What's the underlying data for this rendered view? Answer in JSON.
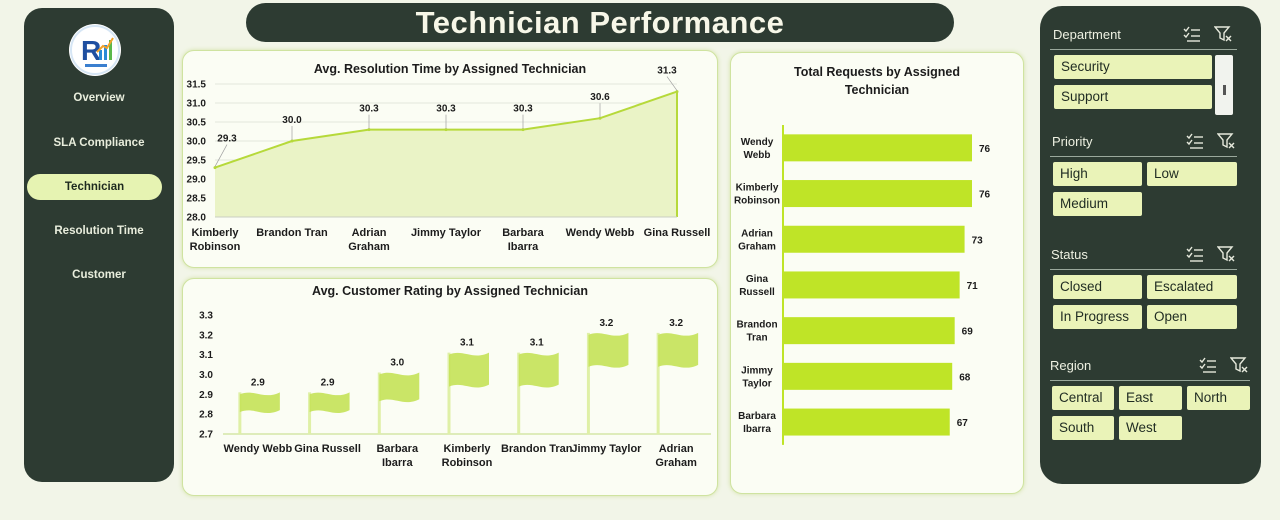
{
  "title": "Technician Performance",
  "nav": {
    "items": [
      {
        "label": "Overview"
      },
      {
        "label": "SLA Compliance"
      },
      {
        "label": "Technician"
      },
      {
        "label": "Resolution Time"
      },
      {
        "label": "Customer"
      }
    ],
    "active": "Technician"
  },
  "charts": {
    "resolution": {
      "chart_data": {
        "type": "area",
        "title": "Avg. Resolution Time by Assigned Technician",
        "categories": [
          "Kimberly Robinson",
          "Brandon Tran",
          "Adrian Graham",
          "Jimmy Taylor",
          "Barbara Ibarra",
          "Wendy Webb",
          "Gina Russell"
        ],
        "values": [
          29.3,
          30.0,
          30.3,
          30.3,
          30.3,
          30.6,
          31.3
        ],
        "ylim": [
          28.0,
          31.5
        ],
        "yticks": [
          "31.5",
          "31.0",
          "30.5",
          "30.0",
          "29.5",
          "29.0",
          "28.5",
          "28.0"
        ],
        "data_labels": [
          "29.3",
          "30.0",
          "30.3",
          "30.3",
          "30.3",
          "30.6",
          "31.3"
        ],
        "grid": true,
        "color": "#b6d93a"
      }
    },
    "rating": {
      "chart_data": {
        "type": "bar",
        "title": "Avg. Customer Rating by Assigned Technician",
        "categories": [
          "Wendy Webb",
          "Gina Russell",
          "Barbara Ibarra",
          "Kimberly Robinson",
          "Brandon Tran",
          "Jimmy Taylor",
          "Adrian Graham"
        ],
        "values": [
          2.9,
          2.9,
          3.0,
          3.1,
          3.1,
          3.2,
          3.2
        ],
        "ylim": [
          2.7,
          3.3
        ],
        "yticks": [
          "3.3",
          "3.2",
          "3.1",
          "3.0",
          "2.9",
          "2.8",
          "2.7"
        ],
        "data_labels": [
          "2.9",
          "2.9",
          "3.0",
          "3.1",
          "3.1",
          "3.2",
          "3.2"
        ],
        "color": "#c5e35a"
      }
    },
    "requests": {
      "chart_data": {
        "type": "bar",
        "orientation": "horizontal",
        "title": "Total Requests  by Assigned Technician",
        "categories": [
          "Wendy Webb",
          "Kimberly Robinson",
          "Adrian Graham",
          "Gina Russell",
          "Brandon Tran",
          "Jimmy Taylor",
          "Barbara Ibarra"
        ],
        "values": [
          76,
          76,
          73,
          71,
          69,
          68,
          67
        ],
        "data_labels": [
          "76",
          "76",
          "73",
          "71",
          "69",
          "68",
          "67"
        ],
        "color": "#bfe427"
      }
    }
  },
  "filters": {
    "sections": [
      {
        "title": "Department",
        "options": [
          "Security",
          "Support"
        ]
      },
      {
        "title": "Priority",
        "options": [
          "High",
          "Low",
          "Medium"
        ]
      },
      {
        "title": "Status",
        "options": [
          "Closed",
          "Escalated",
          "In Progress",
          "Open"
        ]
      },
      {
        "title": "Region",
        "options": [
          "Central",
          "East",
          "North",
          "South",
          "West"
        ]
      }
    ],
    "icons": [
      "multi-select-icon",
      "clear-filter-icon"
    ]
  }
}
